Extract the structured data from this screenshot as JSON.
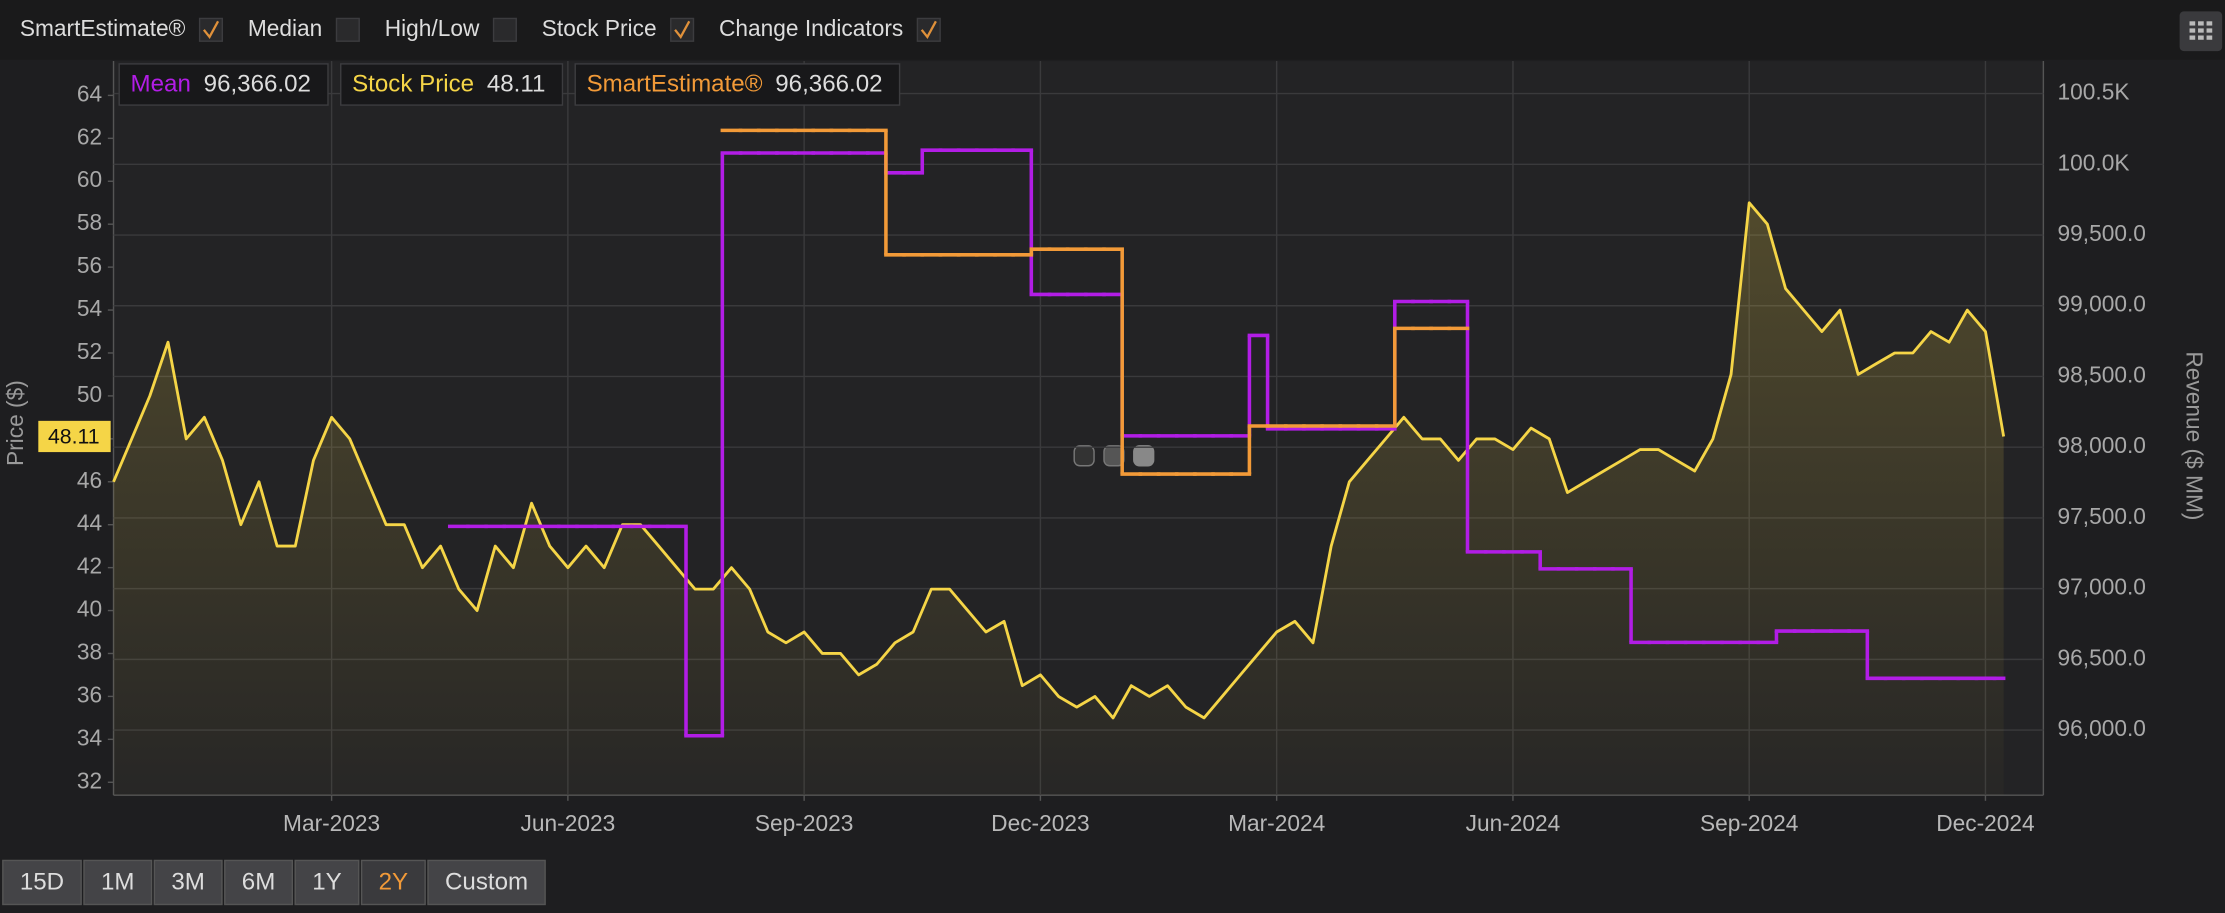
{
  "toolbar": [
    {
      "label": "SmartEstimate®",
      "checked": true
    },
    {
      "label": "Median",
      "checked": false
    },
    {
      "label": "High/Low",
      "checked": false
    },
    {
      "label": "Stock Price",
      "checked": true
    },
    {
      "label": "Change Indicators",
      "checked": true
    }
  ],
  "readouts": [
    {
      "name": "Mean",
      "value": "96,366.02",
      "color": "#b21de6"
    },
    {
      "name": "Stock Price",
      "value": "48.11",
      "color": "#f5d547"
    },
    {
      "name": "SmartEstimate®",
      "value": "96,366.02",
      "color": "#f29a38"
    }
  ],
  "ranges": [
    {
      "label": "15D",
      "selected": false
    },
    {
      "label": "1M",
      "selected": false
    },
    {
      "label": "3M",
      "selected": false
    },
    {
      "label": "6M",
      "selected": false
    },
    {
      "label": "1Y",
      "selected": false
    },
    {
      "label": "2Y",
      "selected": true
    },
    {
      "label": "Custom",
      "selected": false
    }
  ],
  "chart_data": {
    "type": "line",
    "y_label": "Price ($)",
    "y2_label": "Revenue ($ MM)",
    "grid": true,
    "categories": [
      null,
      null,
      null,
      null,
      null,
      null,
      null,
      null,
      null,
      null,
      null,
      null,
      "Mar-2023",
      null,
      null,
      null,
      null,
      null,
      null,
      null,
      null,
      null,
      null,
      null,
      null,
      "Jun-2023",
      null,
      null,
      null,
      null,
      null,
      null,
      null,
      null,
      null,
      null,
      null,
      null,
      "Sep-2023",
      null,
      null,
      null,
      null,
      null,
      null,
      null,
      null,
      null,
      null,
      null,
      null,
      "Dec-2023",
      null,
      null,
      null,
      null,
      null,
      null,
      null,
      null,
      null,
      null,
      null,
      null,
      "Mar-2024",
      null,
      null,
      null,
      null,
      null,
      null,
      null,
      null,
      null,
      null,
      null,
      null,
      "Jun-2024",
      null,
      null,
      null,
      null,
      null,
      null,
      null,
      null,
      null,
      null,
      null,
      null,
      "Sep-2024",
      null,
      null,
      null,
      null,
      null,
      null,
      null,
      null,
      null,
      null,
      null,
      null,
      "Dec-2024",
      null
    ],
    "ylim": [
      31.4,
      65.6
    ],
    "yticks": [
      32,
      34,
      36,
      38,
      40,
      42,
      44,
      46,
      48,
      50,
      52,
      54,
      56,
      58,
      60,
      62,
      64
    ],
    "y2lim": [
      95540,
      100730
    ],
    "y2ticks": [
      {
        "value": 96000,
        "label": "96,000.0"
      },
      {
        "value": 96500,
        "label": "96,500.0"
      },
      {
        "value": 97000,
        "label": "97,000.0"
      },
      {
        "value": 97500,
        "label": "97,500.0"
      },
      {
        "value": 98000,
        "label": "98,000.0"
      },
      {
        "value": 98500,
        "label": "98,500.0"
      },
      {
        "value": 99000,
        "label": "99,000.0"
      },
      {
        "value": 99500,
        "label": "99,500.0"
      },
      {
        "value": 100000,
        "label": "100.0K"
      },
      {
        "value": 100500,
        "label": "100.5K"
      }
    ],
    "series": [
      {
        "name": "Stock Price",
        "color": "#f5d547",
        "axis": "y",
        "step": false,
        "values": [
          46,
          48,
          50,
          52.5,
          48,
          49,
          47,
          44,
          46,
          43,
          43,
          47,
          49,
          48,
          46,
          44,
          44,
          42,
          43,
          41,
          40,
          43,
          42,
          45,
          43,
          42,
          43,
          42,
          44,
          44,
          43,
          42,
          41,
          41,
          42,
          41,
          39,
          38.5,
          39,
          38,
          38,
          37,
          37.5,
          38.5,
          39,
          41,
          41,
          40,
          39,
          39.5,
          36.5,
          37,
          36,
          35.5,
          36,
          35,
          36.5,
          36,
          36.5,
          35.5,
          35,
          36,
          37,
          38,
          39,
          39.5,
          38.5,
          43,
          46,
          47,
          48,
          49,
          48,
          48,
          47,
          48,
          48,
          47.5,
          48.5,
          48,
          45.5,
          46,
          46.5,
          47,
          47.5,
          47.5,
          47,
          46.5,
          48,
          51,
          59,
          58,
          55,
          54,
          53,
          54,
          51,
          51.5,
          52,
          52,
          53,
          52.5,
          54,
          53,
          48.11
        ]
      },
      {
        "name": "Mean",
        "color": "#b21de6",
        "axis": "y2",
        "step": true,
        "values": [
          null,
          null,
          null,
          null,
          null,
          null,
          null,
          null,
          null,
          null,
          null,
          null,
          null,
          null,
          null,
          null,
          null,
          null,
          null,
          97440,
          97440,
          97440,
          97440,
          97440,
          97440,
          97440,
          97440,
          97440,
          97440,
          97440,
          97440,
          97440,
          95960,
          95960,
          100080,
          100080,
          100080,
          100080,
          100080,
          100080,
          100080,
          100080,
          100080,
          99940,
          99940,
          100100,
          100100,
          100100,
          100100,
          100100,
          100100,
          99080,
          99080,
          99080,
          99080,
          99080,
          98080,
          98080,
          98080,
          98080,
          98080,
          98080,
          98080,
          98790,
          98130,
          98130,
          98130,
          98130,
          98130,
          98130,
          98130,
          99030,
          99030,
          99030,
          99030,
          97260,
          97260,
          97260,
          97260,
          97140,
          97140,
          97140,
          97140,
          97140,
          96620,
          96620,
          96620,
          96620,
          96620,
          96620,
          96620,
          96620,
          96700,
          96700,
          96700,
          96700,
          96700,
          96366.02,
          96366.02,
          96366.02,
          96366.02,
          96366.02,
          96366.02,
          96366.02,
          96366.02
        ]
      },
      {
        "name": "SmartEstimate®",
        "color": "#f29a38",
        "axis": "y2",
        "step": true,
        "values": [
          null,
          null,
          null,
          null,
          null,
          null,
          null,
          null,
          null,
          null,
          null,
          null,
          null,
          null,
          null,
          null,
          null,
          null,
          null,
          null,
          null,
          null,
          null,
          null,
          null,
          null,
          null,
          null,
          null,
          null,
          null,
          null,
          null,
          null,
          100240,
          100240,
          100240,
          100240,
          100240,
          100240,
          100240,
          100240,
          100240,
          99360,
          99360,
          99360,
          99360,
          99360,
          99360,
          99360,
          99360,
          99400,
          99400,
          99400,
          99400,
          99400,
          97810,
          97810,
          97810,
          97810,
          97810,
          97810,
          97810,
          98150,
          98150,
          98150,
          98150,
          98150,
          98150,
          98150,
          98150,
          98840,
          98840,
          98840,
          98840,
          null,
          null,
          null,
          null,
          null,
          null,
          null,
          null,
          null,
          null,
          null,
          null,
          null,
          null,
          null,
          null,
          null,
          null,
          null,
          null,
          null,
          null,
          null,
          null,
          null,
          null,
          null,
          null,
          null,
          null
        ]
      }
    ]
  }
}
